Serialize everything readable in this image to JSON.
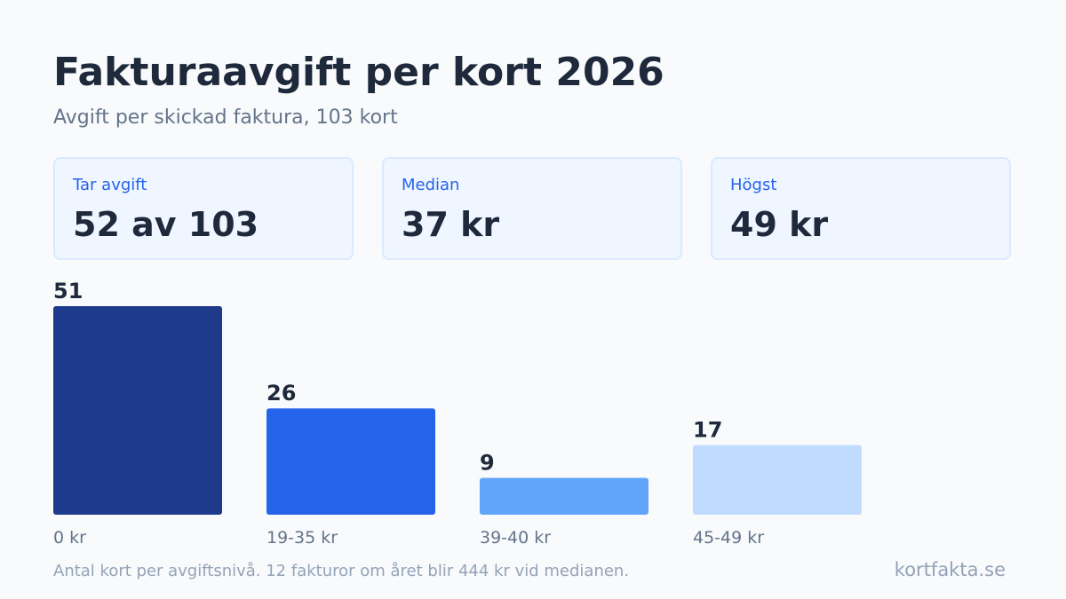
{
  "header": {
    "title": "Fakturaavgift per kort 2026",
    "subtitle": "Avgift per skickad faktura, 103 kort"
  },
  "stats": [
    {
      "label": "Tar avgift",
      "value": "52 av 103"
    },
    {
      "label": "Median",
      "value": "37 kr"
    },
    {
      "label": "Högst",
      "value": "49 kr"
    }
  ],
  "chart_data": {
    "type": "bar",
    "categories": [
      "0 kr",
      "19-35 kr",
      "39-40 kr",
      "45-49 kr"
    ],
    "values": [
      51,
      26,
      9,
      17
    ],
    "colors": [
      "#1e3a8a",
      "#2563eb",
      "#60a5fa",
      "#bfdbfe"
    ],
    "title": "",
    "xlabel": "",
    "ylabel": "",
    "ylim": [
      0,
      51
    ],
    "grid": false,
    "legend": "none"
  },
  "footer": {
    "note": "Antal kort per avgiftsnivå. 12 fakturor om året blir 444 kr vid medianen.",
    "brand": "kortfakta.se"
  }
}
